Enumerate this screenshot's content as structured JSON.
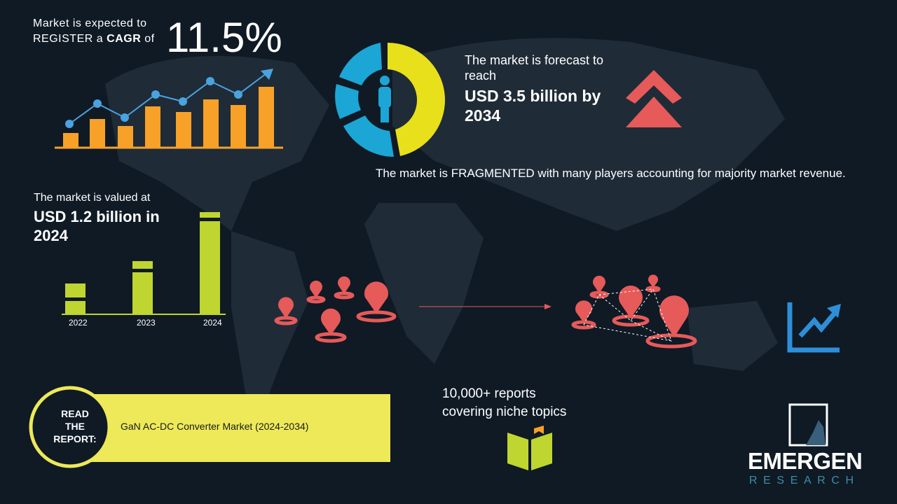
{
  "cagr": {
    "line1": "Market is expected to",
    "line2": [
      "REGISTER a",
      "CAGR",
      "of"
    ],
    "value": "11.5%"
  },
  "forecast": {
    "intro": [
      "The market is forecast to",
      "reach"
    ],
    "headline": [
      "USD 3.5 billion by",
      "2034"
    ]
  },
  "structure": {
    "text": "The market is FRAGMENTED with many players accounting for majority market revenue."
  },
  "valuation": {
    "intro": "The market is valued at",
    "headline": [
      "USD 1.2 billion in",
      "2024"
    ],
    "years": [
      "2022",
      "2023",
      "2024"
    ]
  },
  "reports": {
    "lines": [
      "10,000+ reports",
      "covering niche topics"
    ]
  },
  "read_report": {
    "label": [
      "READ",
      "THE",
      "REPORT:"
    ],
    "title": "GaN AC-DC Converter Market (2024-2034)"
  },
  "logo": {
    "name": "EMERGEN",
    "sub": "RESEARCH"
  }
}
